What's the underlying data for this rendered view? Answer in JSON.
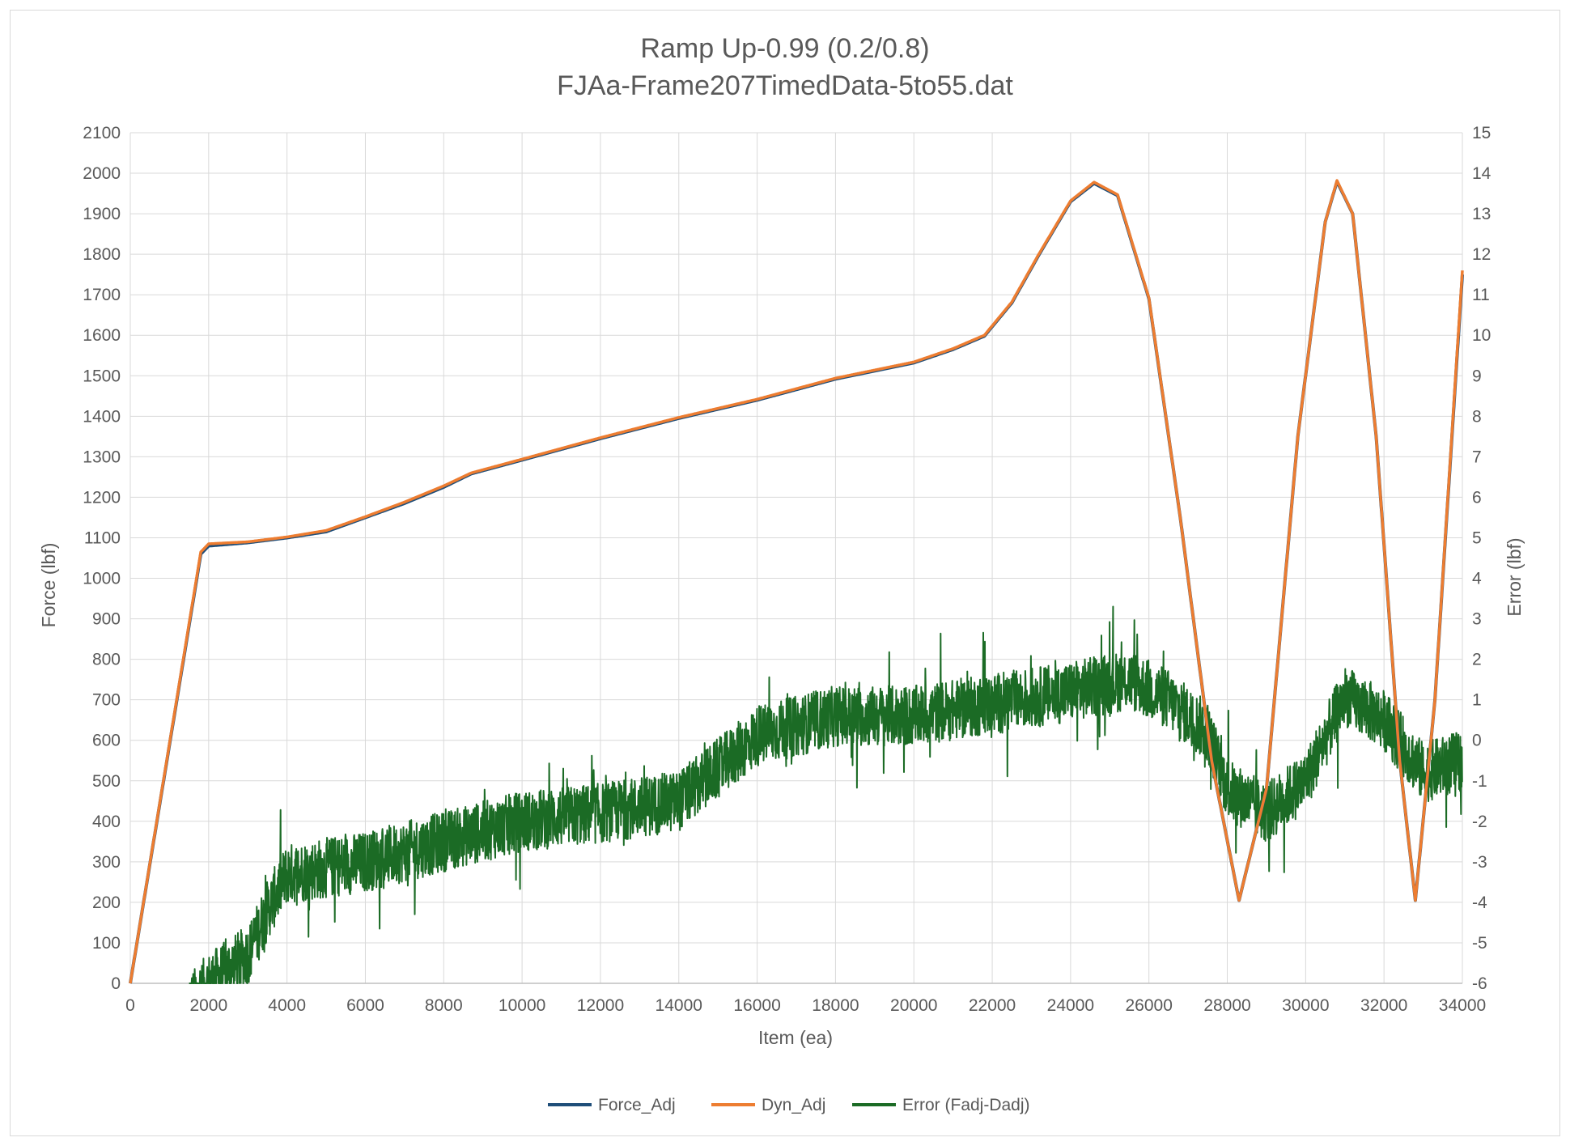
{
  "chart_data": {
    "type": "line",
    "title": "Ramp Up-0.99 (0.2/0.8)",
    "subtitle": "FJAa-Frame207TimedData-5to55.dat",
    "xlabel": "Item (ea)",
    "ylabel": "Force (lbf)",
    "y2label": "Error (lbf)",
    "xlim": [
      0,
      34000
    ],
    "ylim": [
      0,
      2100
    ],
    "y2lim": [
      -6,
      15
    ],
    "x_ticks": [
      "0",
      "2000",
      "4000",
      "6000",
      "8000",
      "10000",
      "12000",
      "14000",
      "16000",
      "18000",
      "20000",
      "22000",
      "24000",
      "26000",
      "28000",
      "30000",
      "32000",
      "34000"
    ],
    "y_ticks": [
      "0",
      "100",
      "200",
      "300",
      "400",
      "500",
      "600",
      "700",
      "800",
      "900",
      "1000",
      "1100",
      "1200",
      "1300",
      "1400",
      "1500",
      "1600",
      "1700",
      "1800",
      "1900",
      "2000",
      "2100"
    ],
    "y2_ticks": [
      "-6",
      "-5",
      "-4",
      "-3",
      "-2",
      "-1",
      "0",
      "1",
      "2",
      "3",
      "4",
      "5",
      "6",
      "7",
      "8",
      "9",
      "10",
      "11",
      "12",
      "13",
      "14",
      "15"
    ],
    "grid": true,
    "legend_position": "bottom",
    "series": [
      {
        "name": "Force_Adj",
        "axis": "left",
        "color": "#1f4e79",
        "x": [
          0,
          1800,
          2000,
          3000,
          4000,
          5000,
          6000,
          7000,
          8000,
          8700,
          10000,
          12000,
          14000,
          16000,
          18000,
          20000,
          21000,
          21800,
          22500,
          23200,
          24000,
          24600,
          25200,
          26000,
          26800,
          27600,
          28300,
          29000,
          29800,
          30500,
          30800,
          31200,
          31800,
          32400,
          32800,
          33300,
          34000
        ],
        "values": [
          0,
          1060,
          1080,
          1088,
          1100,
          1115,
          1150,
          1185,
          1225,
          1258,
          1292,
          1345,
          1395,
          1440,
          1492,
          1532,
          1565,
          1598,
          1680,
          1800,
          1930,
          1975,
          1945,
          1690,
          1150,
          550,
          205,
          480,
          1350,
          1880,
          1980,
          1900,
          1350,
          550,
          205,
          700,
          1750
        ]
      },
      {
        "name": "Dyn_Adj",
        "axis": "left",
        "color": "#ed7d31",
        "x": [
          0,
          1800,
          2000,
          3000,
          4000,
          5000,
          6000,
          7000,
          8000,
          8700,
          10000,
          12000,
          14000,
          16000,
          18000,
          20000,
          21000,
          21800,
          22500,
          23200,
          24000,
          24600,
          25200,
          26000,
          26800,
          27600,
          28300,
          29000,
          29800,
          30500,
          30800,
          31200,
          31800,
          32400,
          32800,
          33300,
          34000
        ],
        "values": [
          0,
          1065,
          1085,
          1090,
          1102,
          1118,
          1152,
          1188,
          1228,
          1260,
          1294,
          1347,
          1397,
          1442,
          1494,
          1534,
          1567,
          1600,
          1682,
          1802,
          1932,
          1978,
          1947,
          1692,
          1150,
          550,
          205,
          480,
          1350,
          1880,
          1982,
          1900,
          1350,
          550,
          205,
          700,
          1760
        ]
      },
      {
        "name": "Error (Fadj-Dadj)",
        "axis": "right",
        "color": "#1b6b25",
        "x": [
          1500,
          2000,
          3000,
          3500,
          4000,
          6000,
          8000,
          10000,
          12000,
          14000,
          16000,
          18000,
          20000,
          22000,
          24000,
          25500,
          26500,
          27500,
          28000,
          29000,
          30000,
          31000,
          32000,
          33000,
          34000
        ],
        "values": [
          -6.5,
          -6.0,
          -5.3,
          -4.2,
          -3.3,
          -3.0,
          -2.5,
          -2.0,
          -1.8,
          -1.5,
          0.1,
          0.6,
          0.6,
          0.9,
          1.2,
          1.5,
          1.0,
          0.2,
          -1.2,
          -1.8,
          -1.0,
          1.1,
          0.5,
          -0.8,
          -0.5
        ],
        "noise_amplitude": 0.75
      }
    ]
  }
}
